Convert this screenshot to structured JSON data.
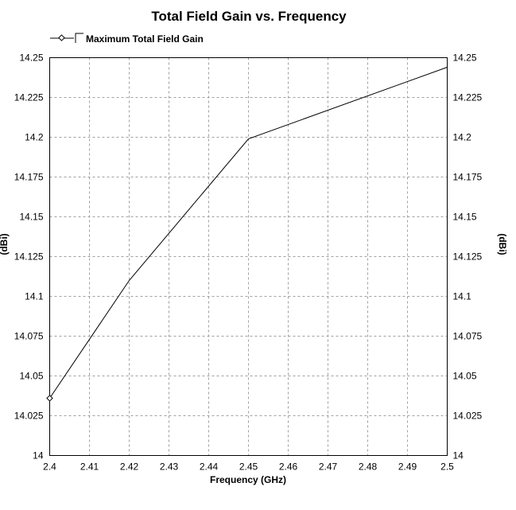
{
  "chart_data": {
    "type": "line",
    "title": "Total Field Gain vs. Frequency",
    "xlabel": "Frequency (GHz)",
    "ylabel": "(dBi)",
    "ylabel_right": "(dBi)",
    "xlim": [
      2.4,
      2.5
    ],
    "ylim": [
      14,
      14.25
    ],
    "x_ticks": [
      "2.4",
      "2.41",
      "2.42",
      "2.43",
      "2.44",
      "2.45",
      "2.46",
      "2.47",
      "2.48",
      "2.49",
      "2.5"
    ],
    "y_ticks": [
      "14",
      "14.025",
      "14.05",
      "14.075",
      "14.1",
      "14.125",
      "14.15",
      "14.175",
      "14.2",
      "14.225",
      "14.25"
    ],
    "grid": true,
    "legend_position": "top-left",
    "series": [
      {
        "name": "Maximum Total Field Gain",
        "color": "#000000",
        "x": [
          2.4,
          2.42,
          2.45,
          2.5
        ],
        "y": [
          14.036,
          14.11,
          14.199,
          14.244
        ]
      }
    ]
  }
}
